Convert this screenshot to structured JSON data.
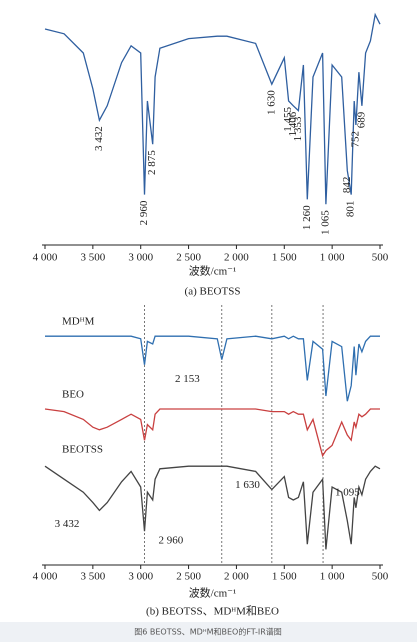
{
  "caption": "图6 BEOTSS、MDᴴM和BEO的FT-IR谱图",
  "chart_data": [
    {
      "type": "line",
      "caption": "(a) BEOTSS",
      "xlabel": "波数/cm⁻¹",
      "xlim": [
        4000,
        500
      ],
      "ylim": [
        0,
        100
      ],
      "xticks": [
        {
          "value": 4000,
          "label": "4 000"
        },
        {
          "value": 3500,
          "label": "3 500"
        },
        {
          "value": 3000,
          "label": "3 000"
        },
        {
          "value": 2500,
          "label": "2 500"
        },
        {
          "value": 2000,
          "label": "2 000"
        },
        {
          "value": 1500,
          "label": "1 500"
        },
        {
          "value": 1000,
          "label": "1 000"
        },
        500
      ],
      "x": [
        4000,
        3800,
        3600,
        3500,
        3432,
        3350,
        3200,
        3100,
        3000,
        2960,
        2930,
        2875,
        2850,
        2800,
        2500,
        2200,
        2153,
        2100,
        1800,
        1630,
        1500,
        1455,
        1406,
        1353,
        1300,
        1260,
        1200,
        1100,
        1065,
        1000,
        900,
        842,
        801,
        770,
        752,
        720,
        689,
        650,
        600,
        550,
        500
      ],
      "series": [
        {
          "color": "#2f5fa0",
          "values": [
            90,
            88,
            80,
            65,
            52,
            58,
            76,
            83,
            80,
            21,
            60,
            42,
            70,
            82,
            86,
            87,
            87,
            87,
            84,
            67,
            78,
            60,
            58,
            56,
            75,
            19,
            70,
            80,
            17,
            75,
            70,
            31,
            21,
            60,
            50,
            72,
            58,
            80,
            85,
            96,
            92
          ]
        }
      ],
      "annotations": [
        {
          "label": "3 432",
          "x": 3432
        },
        {
          "label": "2 960",
          "x": 2960
        },
        {
          "label": "2 875",
          "x": 2875
        },
        {
          "label": "1 630",
          "x": 1630
        },
        {
          "label": "1 455",
          "x": 1455
        },
        {
          "label": "1 406",
          "x": 1406
        },
        {
          "label": "1 353",
          "x": 1353
        },
        {
          "label": "1 260",
          "x": 1260
        },
        {
          "label": "1 065",
          "x": 1065
        },
        {
          "label": "842",
          "x": 842
        },
        {
          "label": "801",
          "x": 801
        },
        {
          "label": "752",
          "x": 752
        },
        {
          "label": "689",
          "x": 689
        }
      ]
    },
    {
      "type": "line",
      "caption": "(b) BEOTSS、MDᴴM和BEO",
      "xlabel": "波数/cm⁻¹",
      "xlim": [
        4000,
        500
      ],
      "ylim": [
        0,
        100
      ],
      "xticks": [
        {
          "value": 4000,
          "label": "4 000"
        },
        {
          "value": 3500,
          "label": "3 500"
        },
        {
          "value": 3000,
          "label": "3 000"
        },
        {
          "value": 2500,
          "label": "2 500"
        },
        {
          "value": 2000,
          "label": "2 000"
        },
        {
          "value": 1500,
          "label": "1 500"
        },
        {
          "value": 1000,
          "label": "1 000"
        },
        500
      ],
      "vlines": [
        2960,
        2153,
        1630,
        1095
      ],
      "x": [
        4000,
        3800,
        3600,
        3500,
        3432,
        3350,
        3200,
        3100,
        3000,
        2960,
        2930,
        2875,
        2850,
        2800,
        2500,
        2200,
        2153,
        2100,
        1800,
        1630,
        1500,
        1455,
        1406,
        1353,
        1300,
        1260,
        1200,
        1100,
        1065,
        1000,
        900,
        842,
        801,
        770,
        752,
        720,
        689,
        650,
        600,
        550,
        500
      ],
      "series": [
        {
          "name": "MDᴴM",
          "color": "#2f6fb0",
          "values": [
            88,
            88,
            88,
            88,
            88,
            88,
            88,
            88,
            87,
            77,
            86,
            85,
            88,
            88,
            88,
            87,
            79,
            87,
            88,
            87,
            88,
            87,
            88,
            87,
            87,
            71,
            86,
            83,
            65,
            86,
            84,
            63,
            69,
            84,
            73,
            85,
            82,
            86,
            88,
            88,
            88
          ]
        },
        {
          "name": "BEO",
          "color": "#c94040",
          "values": [
            60,
            59,
            56,
            53,
            52,
            53,
            56,
            58,
            56,
            48,
            54,
            52,
            58,
            60,
            60,
            60,
            60,
            60,
            60,
            59,
            59,
            58,
            59,
            58,
            58,
            52,
            56,
            42,
            44,
            46,
            55,
            50,
            48,
            55,
            53,
            58,
            57,
            58,
            60,
            60,
            60
          ]
        },
        {
          "name": "BEOTSS",
          "color": "#444444",
          "values": [
            38,
            33,
            28,
            24,
            21,
            24,
            32,
            36,
            30,
            13,
            28,
            25,
            33,
            37,
            38,
            38,
            38,
            38,
            36,
            29,
            34,
            26,
            25,
            26,
            32,
            8,
            28,
            33,
            6,
            30,
            28,
            17,
            8,
            26,
            22,
            30,
            27,
            33,
            36,
            38,
            37
          ]
        }
      ],
      "annotations": [
        {
          "label": "2 153",
          "x": 2153
        },
        {
          "label": "1 095",
          "x": 1095
        },
        {
          "label": "1 630",
          "x": 1630
        },
        {
          "label": "3 432",
          "x": 3432
        },
        {
          "label": "2 960",
          "x": 2960
        }
      ]
    }
  ]
}
